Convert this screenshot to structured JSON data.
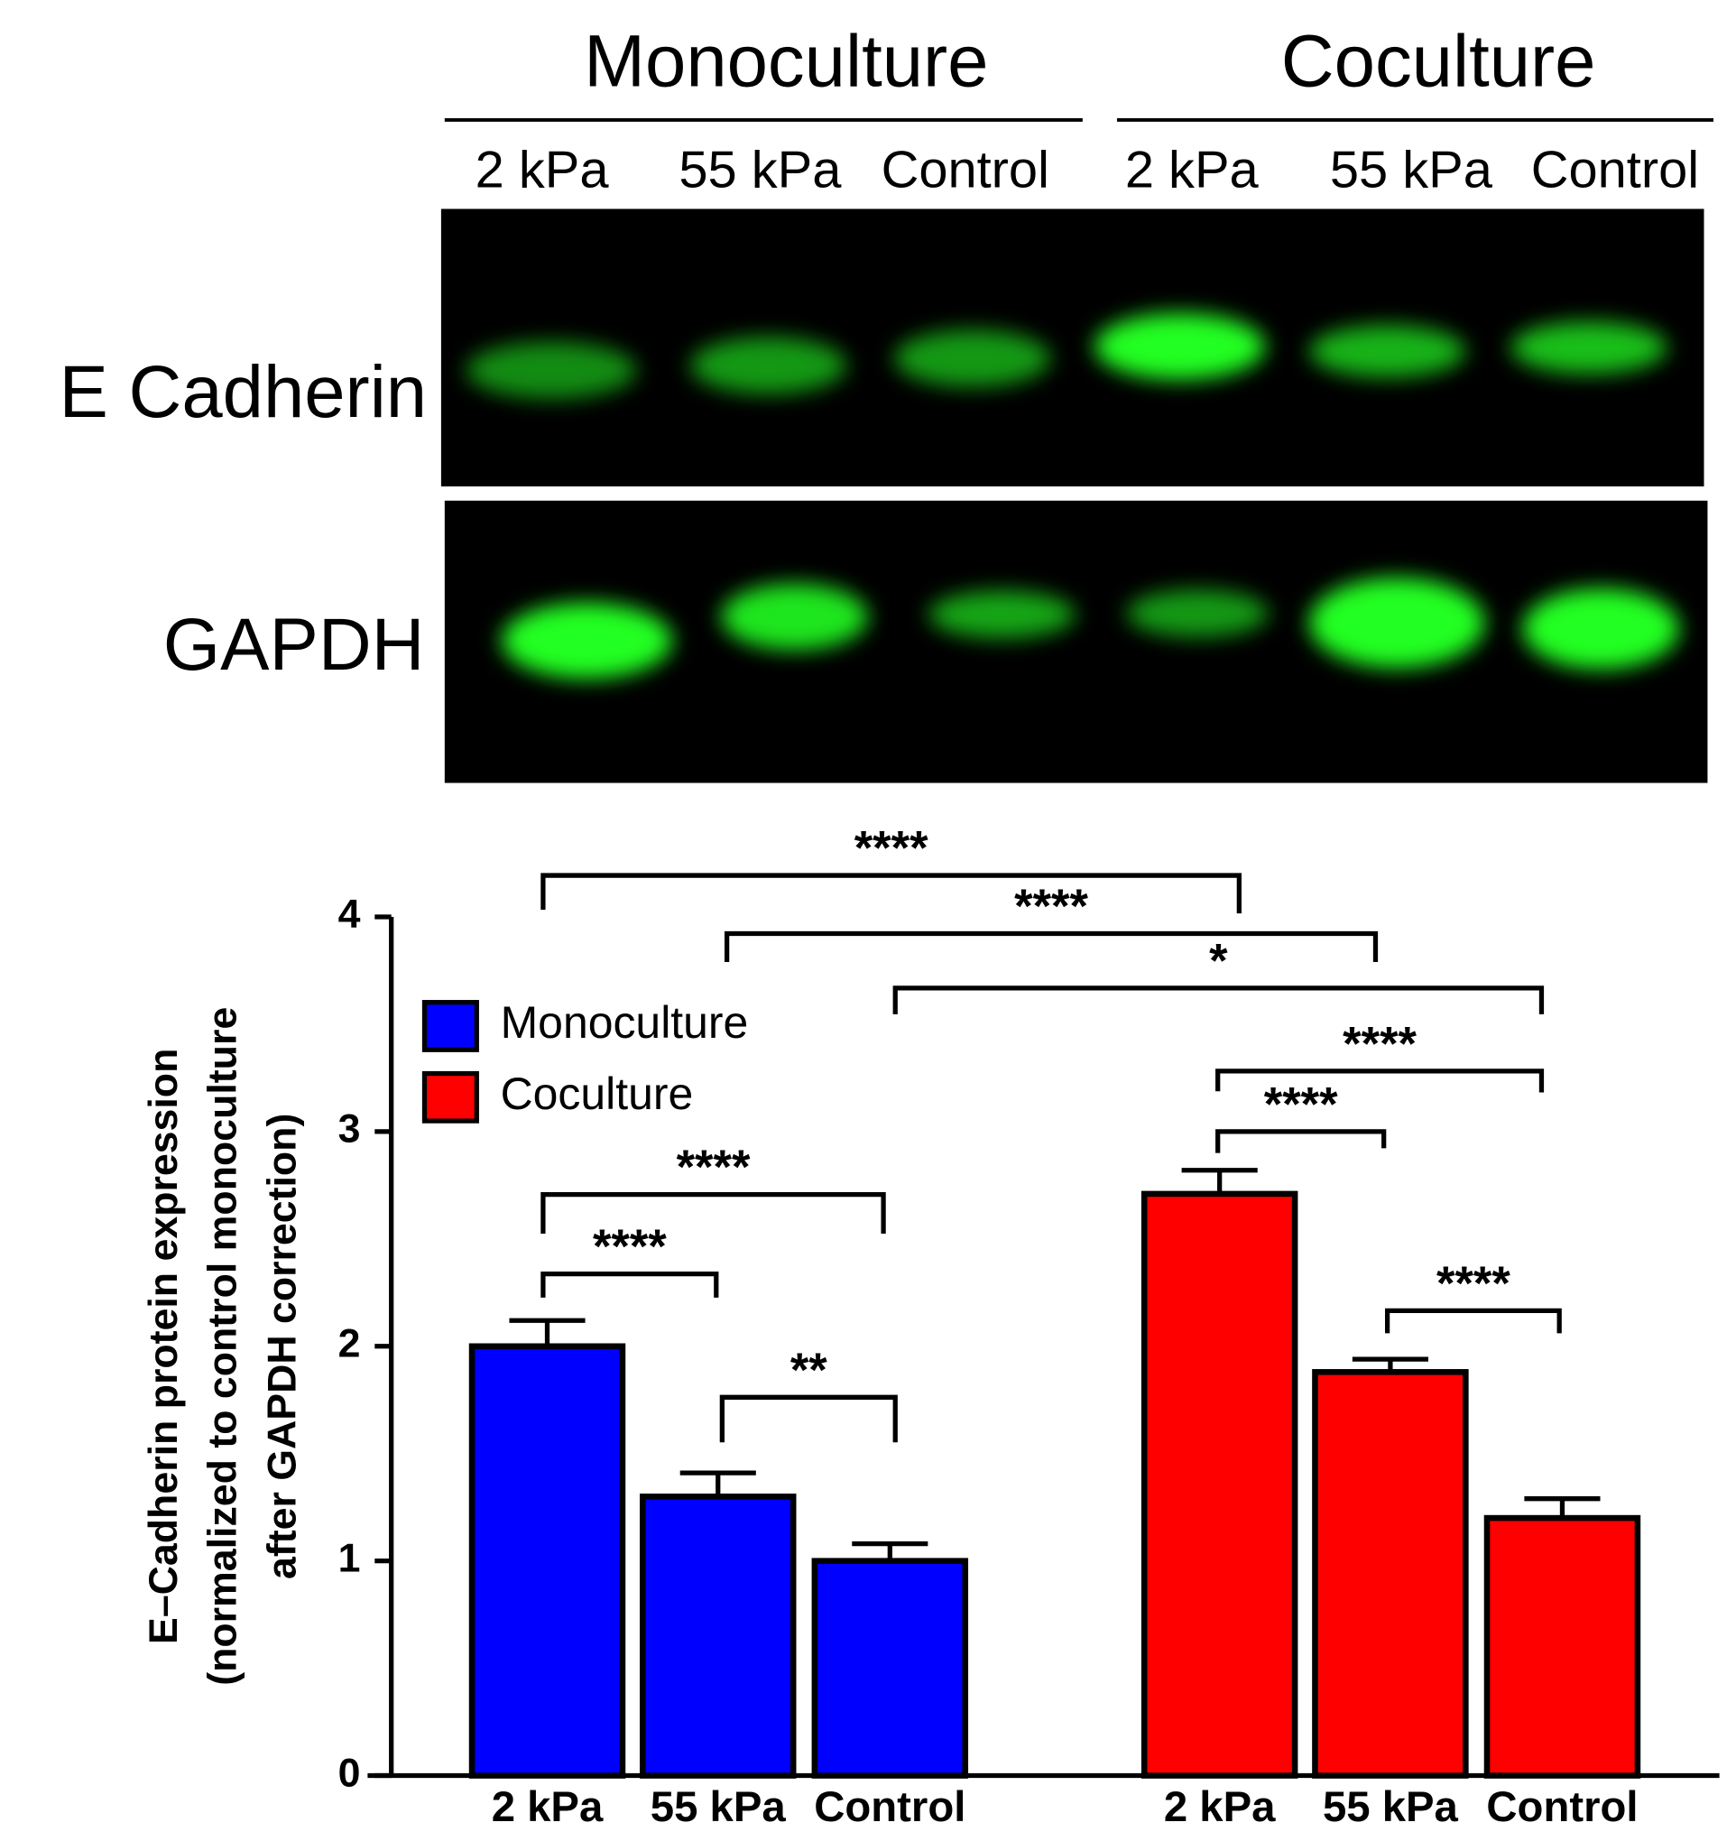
{
  "blot": {
    "groups": [
      "Monoculture",
      "Coculture"
    ],
    "lanes": [
      "2 kPa",
      "55 kPa",
      "Control",
      "2 kPa",
      "55 kPa",
      "Control"
    ],
    "rows": [
      "E Cadherin",
      "GAPDH"
    ]
  },
  "chart_data": {
    "type": "bar",
    "ylabel": [
      "E–Cadherin protein expression",
      "(normalized to control monoculture",
      "after GAPDH correction)"
    ],
    "categories": [
      "2 kPa",
      "55 kPa",
      "Control"
    ],
    "series": [
      {
        "name": "Monoculture",
        "color": "#0000ff",
        "values": [
          2.0,
          1.3,
          1.0
        ],
        "errors": [
          0.12,
          0.11,
          0.08
        ]
      },
      {
        "name": "Coculture",
        "color": "#ff0000",
        "values": [
          2.71,
          1.88,
          1.2
        ],
        "errors": [
          0.11,
          0.06,
          0.09
        ]
      }
    ],
    "ylim": [
      0,
      4
    ],
    "yticks": [
      0,
      1,
      2,
      3,
      4
    ],
    "legend": "upper left",
    "annotations": [
      "****",
      "****",
      "*",
      "****",
      "****",
      "****",
      "****",
      "**",
      "****"
    ]
  }
}
